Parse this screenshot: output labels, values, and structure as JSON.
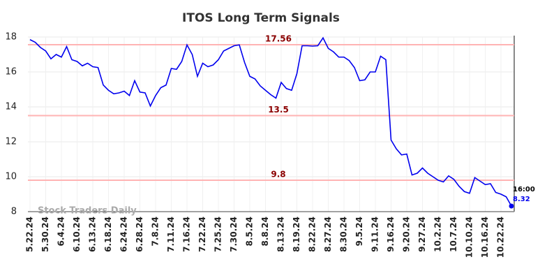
{
  "chart_data": {
    "type": "line",
    "title": "ITOS Long Term Signals",
    "watermark": "Stock Traders Daily",
    "categories": [
      "5.22.24",
      null,
      null,
      "5.30.24",
      null,
      null,
      "6.4.24",
      null,
      null,
      "6.10.24",
      null,
      null,
      "6.13.24",
      null,
      null,
      "6.18.24",
      null,
      null,
      "6.24.24",
      null,
      null,
      "6.28.24",
      null,
      null,
      "7.8.24",
      null,
      null,
      "7.11.24",
      null,
      null,
      "7.16.24",
      null,
      null,
      "7.22.24",
      null,
      null,
      "7.25.24",
      null,
      null,
      "7.30.24",
      null,
      null,
      "8.5.24",
      null,
      null,
      "8.8.24",
      null,
      null,
      "8.13.24",
      null,
      null,
      "8.19.24",
      null,
      null,
      "8.22.24",
      null,
      null,
      "8.27.24",
      null,
      null,
      "8.30.24",
      null,
      null,
      "9.5.24",
      null,
      null,
      "9.11.24",
      null,
      null,
      "9.16.24",
      null,
      null,
      "9.20.24",
      null,
      null,
      "9.27.24",
      null,
      null,
      "10.2.24",
      null,
      null,
      "10.7.24",
      null,
      null,
      "10.10.24",
      null,
      null,
      "10.16.24",
      null,
      null,
      "10.22.24",
      null,
      null
    ],
    "series": [
      {
        "color": "#0000ee",
        "values": [
          17.85,
          17.7,
          17.4,
          17.2,
          16.75,
          17.0,
          16.85,
          17.45,
          16.7,
          16.6,
          16.35,
          16.5,
          16.3,
          16.25,
          15.25,
          14.95,
          14.75,
          14.8,
          14.9,
          14.65,
          15.5,
          14.85,
          14.8,
          14.05,
          14.65,
          15.1,
          15.25,
          16.2,
          16.15,
          16.6,
          17.55,
          17.0,
          15.75,
          16.5,
          16.3,
          16.4,
          16.7,
          17.2,
          17.35,
          17.5,
          17.55,
          16.55,
          15.75,
          15.6,
          15.2,
          14.95,
          14.7,
          14.5,
          15.4,
          15.05,
          14.95,
          15.9,
          17.5,
          17.5,
          17.48,
          17.5,
          17.95,
          17.35,
          17.15,
          16.85,
          16.85,
          16.65,
          16.25,
          15.5,
          15.55,
          16.0,
          16.0,
          16.9,
          16.7,
          12.1,
          11.6,
          11.25,
          11.3,
          10.1,
          10.2,
          10.5,
          10.2,
          10.0,
          9.8,
          9.7,
          10.05,
          9.85,
          9.45,
          9.15,
          9.05,
          9.95,
          9.75,
          9.55,
          9.6,
          9.1,
          9.0,
          8.85,
          8.32
        ]
      }
    ],
    "reference_lines": [
      17.56,
      13.5,
      9.8
    ],
    "reference_color": "#ffb3b3",
    "reference_label_color": "#8b0000",
    "last_label": "16:00",
    "ylim": [
      8,
      18
    ],
    "yticks": [
      8,
      10,
      12,
      14,
      16,
      18
    ],
    "grid": true
  }
}
